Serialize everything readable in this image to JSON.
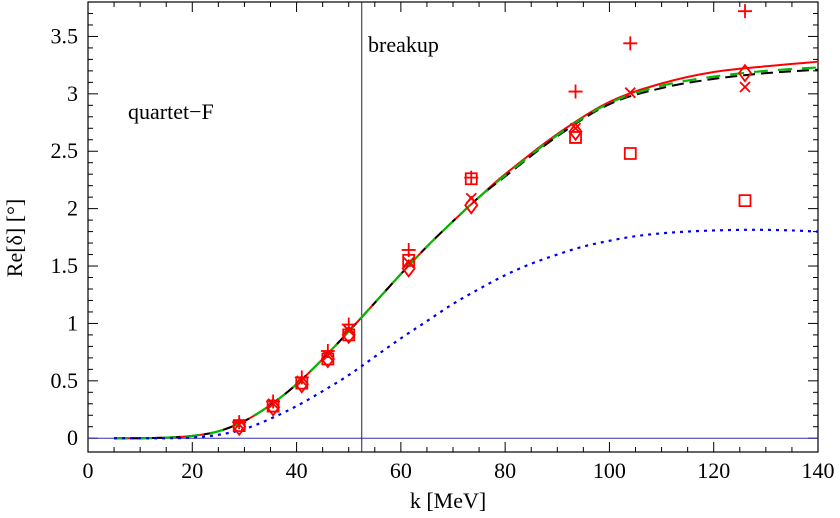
{
  "chart_data": {
    "type": "line",
    "xlabel": "k [MeV]",
    "ylabel": "Re[δ] [°]",
    "xlim": [
      0,
      140
    ],
    "ylim": [
      -0.12,
      3.8
    ],
    "x_ticks": [
      0,
      20,
      40,
      60,
      80,
      100,
      120,
      140
    ],
    "x_tick_labels": [
      "0",
      "20",
      "40",
      "60",
      "80",
      "100",
      "120",
      "140"
    ],
    "y_ticks": [
      0,
      0.5,
      1,
      1.5,
      2,
      2.5,
      3,
      3.5
    ],
    "y_tick_labels": [
      "0",
      "0.5",
      "1",
      "1.5",
      "2",
      "2.5",
      "3",
      "3.5"
    ],
    "annotations": {
      "partial_wave": "quartet−F",
      "threshold": "breakup"
    },
    "breakup_k": 52.5,
    "colors": {
      "red": "#ff0000",
      "green": "#00bb00",
      "black": "#000000",
      "blue": "#0000ee",
      "baseline": "#3333aa"
    },
    "curves": [
      {
        "name": "solid-red",
        "style": "solid",
        "color": "#ff0000",
        "x": [
          5,
          10,
          15,
          20,
          25,
          30,
          35,
          40,
          45,
          50,
          55,
          60,
          65,
          70,
          75,
          80,
          90,
          100,
          110,
          120,
          130,
          140
        ],
        "y": [
          0,
          0,
          0.005,
          0.02,
          0.06,
          0.15,
          0.29,
          0.47,
          0.69,
          0.93,
          1.18,
          1.43,
          1.67,
          1.89,
          2.1,
          2.3,
          2.65,
          2.93,
          3.09,
          3.19,
          3.24,
          3.28
        ]
      },
      {
        "name": "dashed-black",
        "style": "dashed",
        "color": "#000000",
        "x": [
          5,
          10,
          15,
          20,
          25,
          30,
          35,
          40,
          45,
          50,
          55,
          60,
          65,
          70,
          75,
          80,
          90,
          100,
          110,
          120,
          130,
          140
        ],
        "y": [
          0,
          0,
          0.005,
          0.02,
          0.06,
          0.15,
          0.29,
          0.47,
          0.69,
          0.93,
          1.18,
          1.43,
          1.67,
          1.89,
          2.1,
          2.28,
          2.63,
          2.91,
          3.05,
          3.13,
          3.18,
          3.21
        ]
      },
      {
        "name": "dashed-green",
        "style": "dashed-long",
        "color": "#00bb00",
        "x": [
          5,
          10,
          15,
          20,
          25,
          30,
          35,
          40,
          45,
          50,
          55,
          60,
          65,
          70,
          75,
          80,
          90,
          100,
          110,
          120,
          130,
          140
        ],
        "y": [
          0,
          0,
          0.005,
          0.02,
          0.06,
          0.15,
          0.29,
          0.47,
          0.69,
          0.93,
          1.18,
          1.43,
          1.67,
          1.89,
          2.1,
          2.29,
          2.64,
          2.92,
          3.07,
          3.15,
          3.2,
          3.23
        ]
      },
      {
        "name": "dotted-blue",
        "style": "dotted",
        "color": "#0000ee",
        "x": [
          5,
          10,
          15,
          20,
          25,
          30,
          35,
          40,
          45,
          50,
          55,
          60,
          65,
          70,
          75,
          80,
          85,
          90,
          95,
          100,
          105,
          110,
          115,
          120,
          125,
          130,
          135,
          140
        ],
        "y": [
          0,
          0,
          0,
          0.005,
          0.03,
          0.08,
          0.17,
          0.28,
          0.41,
          0.55,
          0.71,
          0.87,
          1.02,
          1.17,
          1.3,
          1.42,
          1.52,
          1.6,
          1.67,
          1.72,
          1.76,
          1.785,
          1.8,
          1.81,
          1.815,
          1.815,
          1.81,
          1.8
        ]
      }
    ],
    "markers": [
      {
        "name": "plus",
        "symbol": "+",
        "color": "#ff0000",
        "x": [
          29,
          35.5,
          41,
          46,
          50,
          61.5,
          73.5,
          93.5,
          104,
          126
        ],
        "y": [
          0.14,
          0.32,
          0.53,
          0.76,
          0.99,
          1.64,
          2.27,
          3.02,
          3.44,
          3.72
        ]
      },
      {
        "name": "cross",
        "symbol": "x",
        "color": "#ff0000",
        "x": [
          29,
          35.5,
          41,
          46,
          50,
          61.5,
          73.5,
          93.5,
          104,
          126
        ],
        "y": [
          0.12,
          0.3,
          0.5,
          0.72,
          0.94,
          1.53,
          2.09,
          2.7,
          3.01,
          3.06
        ]
      },
      {
        "name": "square",
        "symbol": "square",
        "color": "#ff0000",
        "x": [
          29,
          35.5,
          41,
          46,
          50,
          61.5,
          73.5,
          93.5,
          104,
          126
        ],
        "y": [
          0.11,
          0.28,
          0.48,
          0.69,
          0.9,
          1.55,
          2.26,
          2.62,
          2.48,
          2.07
        ]
      },
      {
        "name": "diamond",
        "symbol": "diamond",
        "color": "#ff0000",
        "x": [
          29,
          35.5,
          41,
          46,
          50,
          61.5,
          73.5,
          93.5,
          126
        ],
        "y": [
          0.1,
          0.27,
          0.47,
          0.69,
          0.9,
          1.48,
          2.03,
          2.67,
          3.18
        ]
      }
    ]
  }
}
